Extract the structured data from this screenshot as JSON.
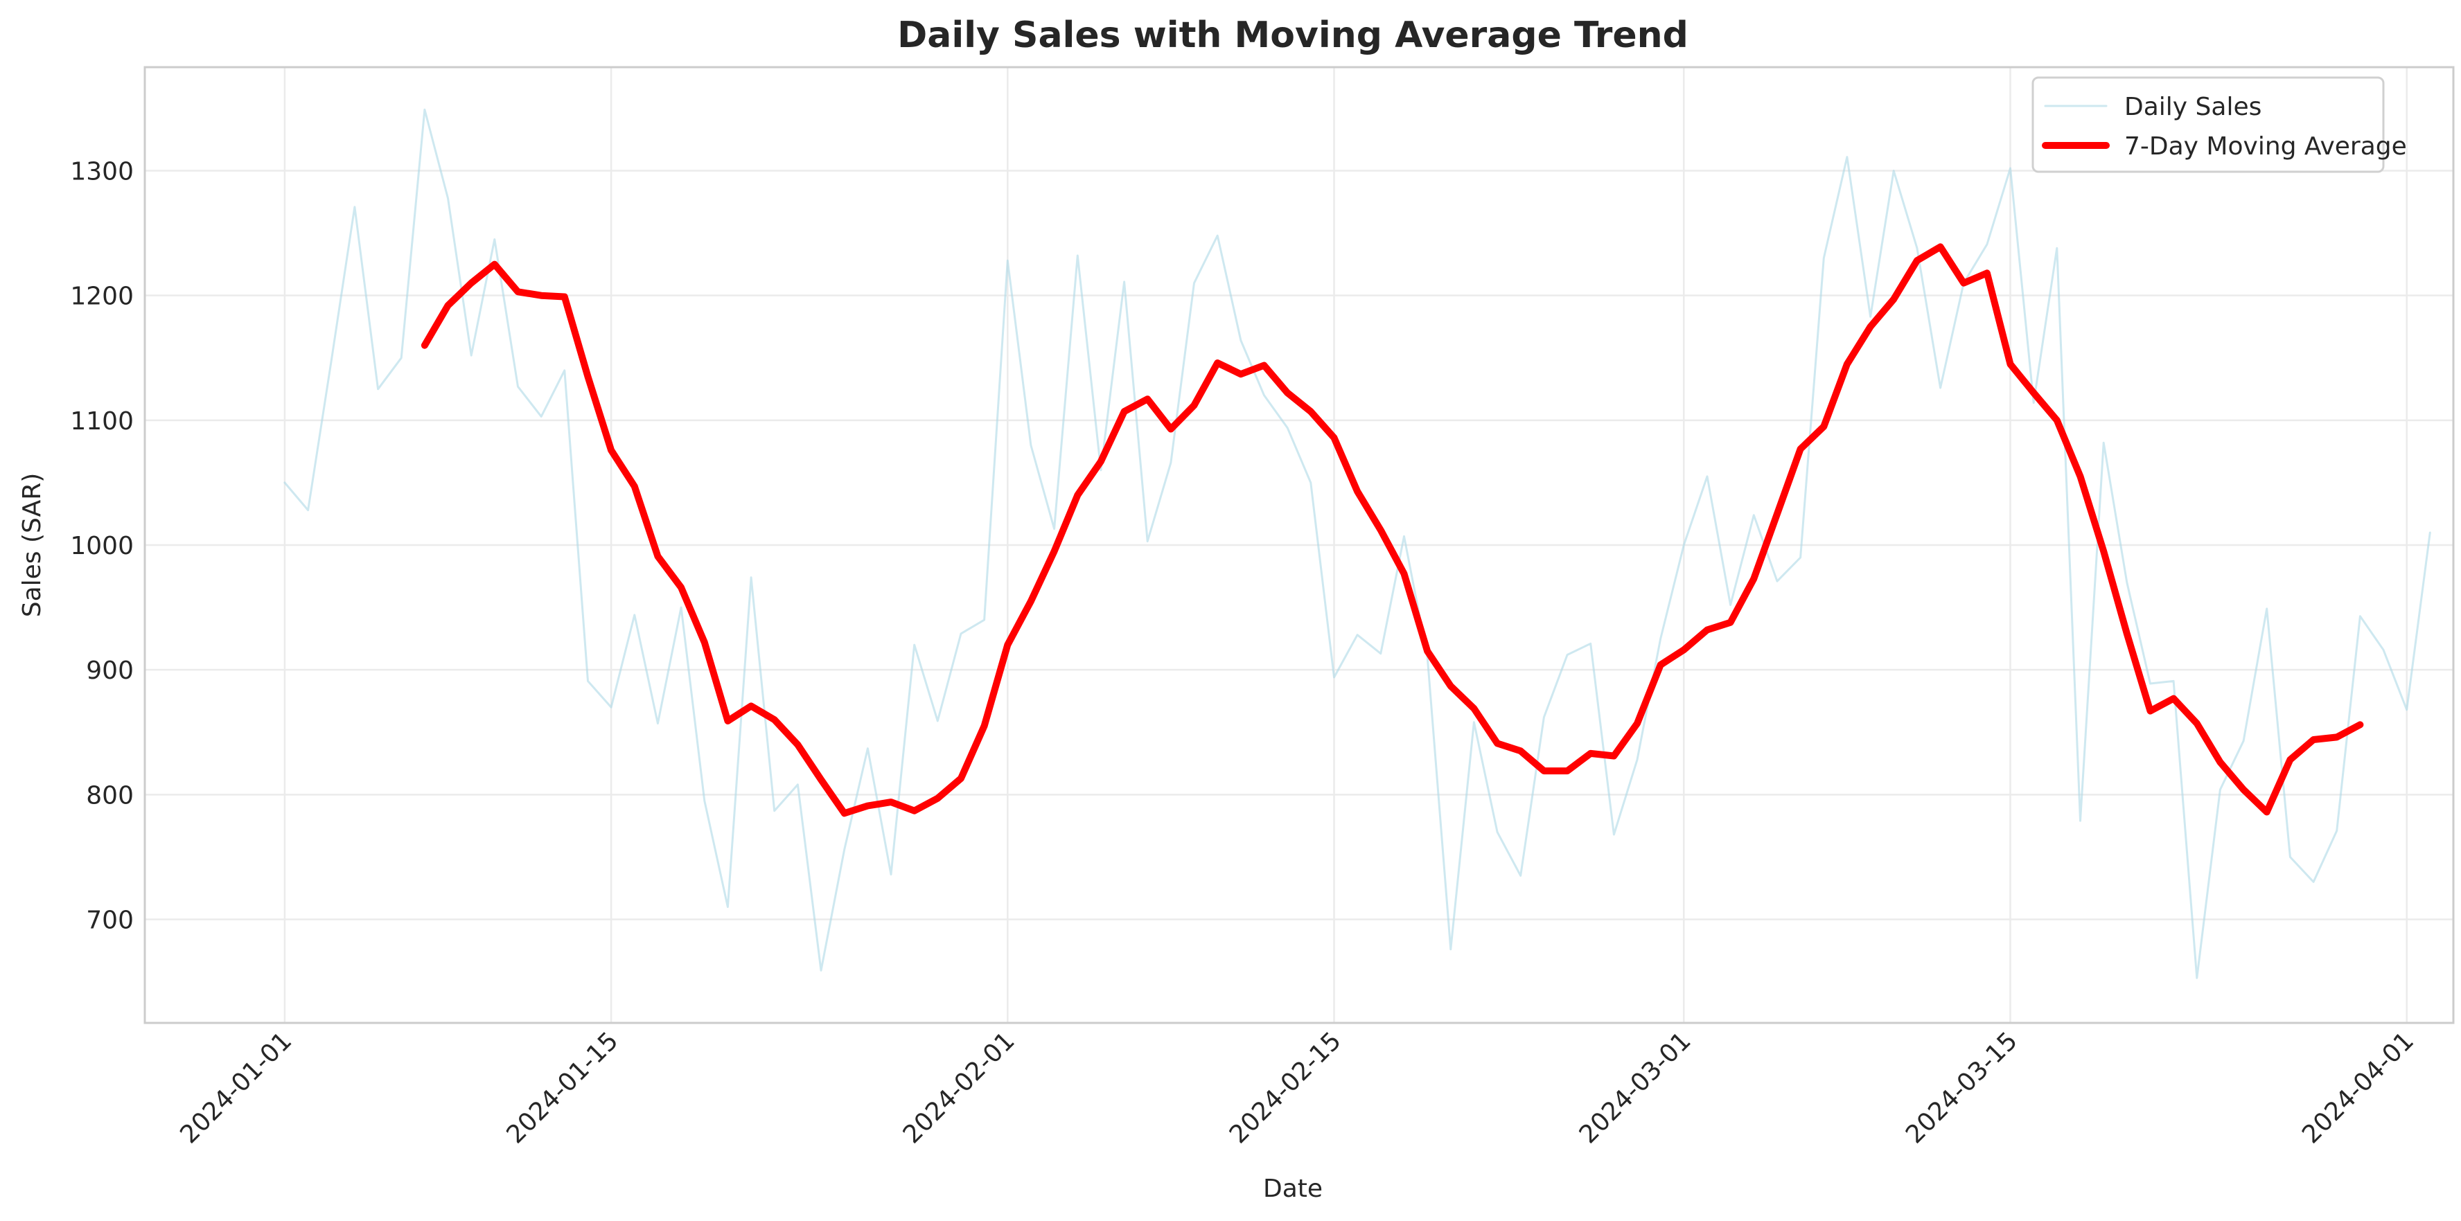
{
  "chart_data": {
    "type": "line",
    "title": "Daily Sales with Moving Average Trend",
    "xlabel": "Date",
    "ylabel": "Sales (SAR)",
    "x_start": "2024-01-01",
    "x_ticks": [
      "2024-01-01",
      "2024-01-15",
      "2024-02-01",
      "2024-02-15",
      "2024-03-01",
      "2024-03-15",
      "2024-04-01"
    ],
    "xlim": [
      "2023-12-26",
      "2024-04-03"
    ],
    "y_ticks": [
      700,
      800,
      900,
      1000,
      1100,
      1200,
      1300
    ],
    "ylim": [
      617,
      1383
    ],
    "grid": true,
    "legend_position": "top-right",
    "series": [
      {
        "name": "Daily Sales",
        "color": "#add8e6",
        "values": [
          1050,
          1028,
          1148,
          1271,
          1125,
          1150,
          1349,
          1278,
          1152,
          1245,
          1127,
          1103,
          1140,
          891,
          870,
          944,
          857,
          950,
          795,
          710,
          974,
          787,
          808,
          659,
          756,
          837,
          736,
          920,
          859,
          929,
          940,
          1228,
          1080,
          1013,
          1232,
          1060,
          1211,
          1003,
          1066,
          1210,
          1248,
          1164,
          1120,
          1094,
          1050,
          894,
          928,
          913,
          1007,
          911,
          676,
          858,
          770,
          735,
          862,
          912,
          921,
          768,
          828,
          925,
          1000,
          1055,
          952,
          1024,
          971,
          990,
          1230,
          1311,
          1183,
          1300,
          1238,
          1126,
          1210,
          1241,
          1302,
          1114,
          1238,
          779,
          1082,
          970,
          889,
          891,
          653,
          804,
          843,
          949,
          750,
          730,
          771,
          943,
          916,
          868,
          1010
        ]
      },
      {
        "name": "7-Day Moving Average",
        "color": "#ff0000",
        "start_index": 6,
        "values": [
          1160,
          1192,
          1210,
          1225,
          1203,
          1200,
          1199,
          1135,
          1076,
          1047,
          991,
          966,
          922,
          859,
          871,
          860,
          840,
          812,
          785,
          791,
          794,
          787,
          797,
          813,
          855,
          920,
          955,
          995,
          1040,
          1067,
          1107,
          1117,
          1093,
          1112,
          1146,
          1137,
          1144,
          1122,
          1107,
          1086,
          1043,
          1012,
          977,
          915,
          887,
          869,
          841,
          835,
          819,
          819,
          833,
          831,
          857,
          904,
          916,
          932,
          938,
          973,
          1025,
          1077,
          1095,
          1145,
          1175,
          1197,
          1228,
          1239,
          1210,
          1218,
          1145,
          1122,
          1100,
          1055,
          995,
          929,
          867,
          877,
          857,
          826,
          804,
          786,
          828,
          844,
          846,
          856
        ]
      }
    ]
  }
}
